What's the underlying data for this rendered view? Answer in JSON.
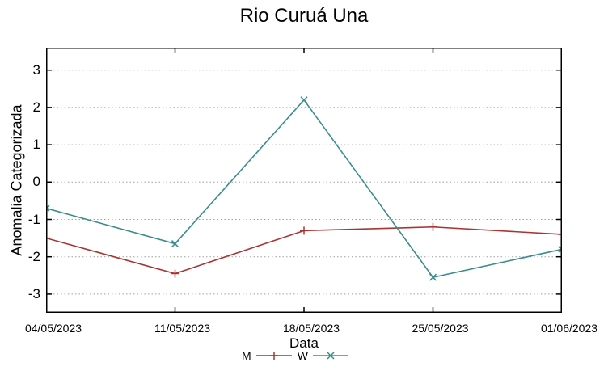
{
  "chart_data": {
    "type": "line",
    "title": "Rio Curuá Una",
    "xlabel": "Data",
    "ylabel": "Anomalia Categorizada",
    "categories": [
      "04/05/2023",
      "11/05/2023",
      "18/05/2023",
      "25/05/2023",
      "01/06/2023"
    ],
    "series": [
      {
        "name": "M",
        "marker": "plus",
        "color": "#a93434",
        "values": [
          -1.5,
          -2.45,
          -1.3,
          -1.2,
          -1.4
        ]
      },
      {
        "name": "W",
        "marker": "x",
        "color": "#3b8d8d",
        "values": [
          -0.7,
          -1.65,
          2.2,
          -2.55,
          -1.8
        ]
      }
    ],
    "yticks": [
      -3,
      -2,
      -1,
      0,
      1,
      2,
      3
    ],
    "ylim": [
      -3.5,
      3.6
    ],
    "grid": "horizontal-dotted",
    "legend_position": "bottom-center",
    "colors": {
      "axis": "#000000",
      "grid": "#a0a0a0",
      "text": "#000000"
    }
  }
}
